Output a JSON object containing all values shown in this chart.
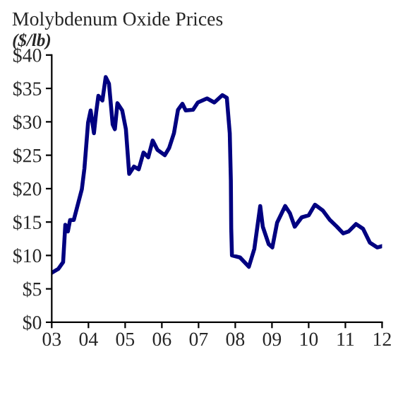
{
  "chart_data": {
    "type": "line",
    "title": "Molybdenum Oxide Prices",
    "ylabel": "($/lb)",
    "x": [
      2003.0,
      2003.18,
      2003.31,
      2003.37,
      2003.44,
      2003.5,
      2003.6,
      2003.7,
      2003.82,
      2003.89,
      2003.99,
      2004.06,
      2004.15,
      2004.21,
      2004.27,
      2004.38,
      2004.47,
      2004.56,
      2004.66,
      2004.72,
      2004.79,
      2004.92,
      2005.02,
      2005.11,
      2005.24,
      2005.37,
      2005.5,
      2005.63,
      2005.75,
      2005.88,
      2006.08,
      2006.2,
      2006.33,
      2006.44,
      2006.56,
      2006.65,
      2006.85,
      2006.98,
      2007.23,
      2007.43,
      2007.65,
      2007.77,
      2007.85,
      2007.88,
      2007.89,
      2007.91,
      2008.13,
      2008.37,
      2008.52,
      2008.68,
      2008.75,
      2008.91,
      2009.01,
      2009.14,
      2009.36,
      2009.49,
      2009.62,
      2009.81,
      2010.0,
      2010.17,
      2010.39,
      2010.58,
      2010.77,
      2010.94,
      2011.09,
      2011.29,
      2011.48,
      2011.67,
      2011.87,
      2012.0
    ],
    "series": [
      {
        "color": "#000080",
        "values": [
          7.4,
          8.0,
          9.0,
          14.6,
          13.6,
          15.3,
          15.3,
          17.4,
          19.9,
          23.0,
          29.9,
          31.7,
          28.3,
          31.4,
          33.9,
          33.2,
          36.7,
          35.7,
          29.6,
          28.9,
          32.8,
          31.7,
          28.9,
          22.2,
          23.3,
          22.9,
          25.4,
          24.7,
          27.2,
          25.8,
          25.0,
          26.1,
          28.3,
          31.8,
          32.7,
          31.7,
          31.8,
          32.9,
          33.5,
          32.9,
          34.0,
          33.6,
          28.3,
          21.2,
          14.1,
          10.0,
          9.7,
          8.3,
          11.0,
          17.4,
          14.3,
          11.7,
          11.2,
          14.9,
          17.4,
          16.3,
          14.3,
          15.7,
          16.0,
          17.6,
          16.7,
          15.3,
          14.3,
          13.3,
          13.6,
          14.7,
          14.0,
          11.9,
          11.2,
          11.4
        ]
      }
    ],
    "xlim": [
      2003,
      2012
    ],
    "xticks": [
      {
        "value": 2003,
        "label": "03"
      },
      {
        "value": 2004,
        "label": "04"
      },
      {
        "value": 2005,
        "label": "05"
      },
      {
        "value": 2006,
        "label": "06"
      },
      {
        "value": 2007,
        "label": "07"
      },
      {
        "value": 2008,
        "label": "08"
      },
      {
        "value": 2009,
        "label": "09"
      },
      {
        "value": 2010,
        "label": "10"
      },
      {
        "value": 2011,
        "label": "11"
      },
      {
        "value": 2012,
        "label": "12"
      }
    ],
    "ylim": [
      0,
      40
    ],
    "yticks": [
      {
        "value": 0,
        "label": "$0"
      },
      {
        "value": 5,
        "label": "$5"
      },
      {
        "value": 10,
        "label": "$10"
      },
      {
        "value": 15,
        "label": "$15"
      },
      {
        "value": 20,
        "label": "$20"
      },
      {
        "value": 25,
        "label": "$25"
      },
      {
        "value": 30,
        "label": "$30"
      },
      {
        "value": 35,
        "label": "$35"
      },
      {
        "value": 40,
        "label": "$40"
      }
    ],
    "grid": false
  }
}
